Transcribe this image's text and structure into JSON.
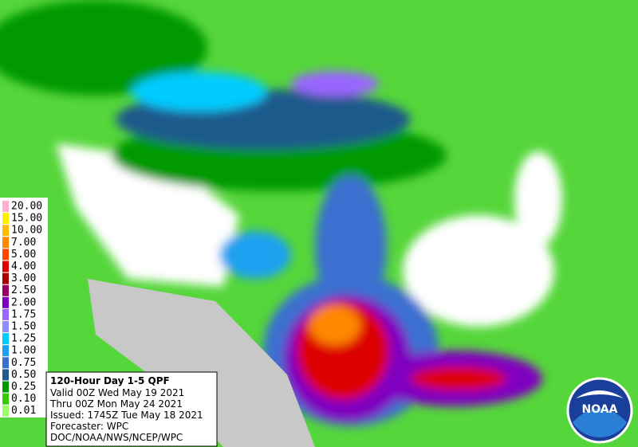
{
  "legend": [
    {
      "label": "20.00",
      "color": "#ffb0d0"
    },
    {
      "label": "15.00",
      "color": "#ffee00"
    },
    {
      "label": "10.00",
      "color": "#ffbb00"
    },
    {
      "label": "7.00",
      "color": "#ff8800"
    },
    {
      "label": "5.00",
      "color": "#ff4400"
    },
    {
      "label": "4.00",
      "color": "#dd0000"
    },
    {
      "label": "3.00",
      "color": "#aa0000"
    },
    {
      "label": "2.50",
      "color": "#990066"
    },
    {
      "label": "2.00",
      "color": "#8000c0"
    },
    {
      "label": "1.75",
      "color": "#9966ff"
    },
    {
      "label": "1.50",
      "color": "#8c8cff"
    },
    {
      "label": "1.25",
      "color": "#00ccff"
    },
    {
      "label": "1.00",
      "color": "#1ea0f0"
    },
    {
      "label": "0.75",
      "color": "#3a6fd0"
    },
    {
      "label": "0.50",
      "color": "#1e5a8c"
    },
    {
      "label": "0.25",
      "color": "#009900"
    },
    {
      "label": "0.10",
      "color": "#33cc00"
    },
    {
      "label": "0.01",
      "color": "#99ff66"
    }
  ],
  "info": {
    "title": "120-Hour Day 1-5 QPF",
    "lines": [
      "Valid 00Z Wed May 19 2021",
      "Thru 00Z Mon May 24 2021",
      "Issued: 1745Z Tue May 18 2021",
      "Forecaster: WPC",
      "DOC/NOAA/NWS/NCEP/WPC"
    ]
  },
  "logo": "NOAA"
}
